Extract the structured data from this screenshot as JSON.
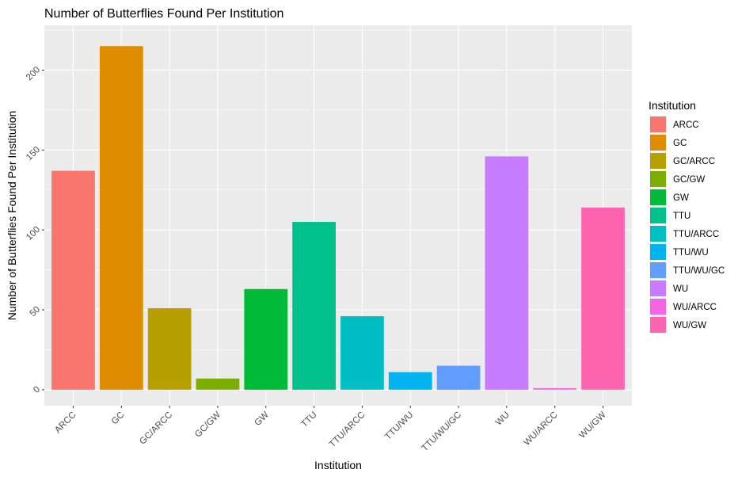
{
  "chart_data": {
    "type": "bar",
    "title": "Number of Butterflies Found Per Institution",
    "xlabel": "Institution",
    "ylabel": "Number of Butterflies Found Per Institution",
    "categories": [
      "ARCC",
      "GC",
      "GC/ARCC",
      "GC/GW",
      "GW",
      "TTU",
      "TTU/ARCC",
      "TTU/WU",
      "TTU/WU/GC",
      "WU",
      "WU/ARCC",
      "WU/GW"
    ],
    "values": [
      137,
      215,
      51,
      7,
      63,
      105,
      46,
      11,
      15,
      146,
      1,
      114
    ],
    "colors": [
      "#F8766D",
      "#DE8C00",
      "#B79F00",
      "#7CAE00",
      "#00BA38",
      "#00C08B",
      "#00BFC4",
      "#00B4F0",
      "#619CFF",
      "#C77CFF",
      "#F564E3",
      "#FF64B0"
    ],
    "ylim": [
      -10,
      228
    ],
    "yticks": [
      0,
      50,
      100,
      150,
      200
    ],
    "ytick_labels": [
      "0",
      "50",
      "100",
      "150",
      "200"
    ],
    "grid": true,
    "panel_background": "#EBEBEB",
    "grid_color": "#FFFFFF",
    "legend": {
      "title": "Institution",
      "position": "right"
    }
  }
}
